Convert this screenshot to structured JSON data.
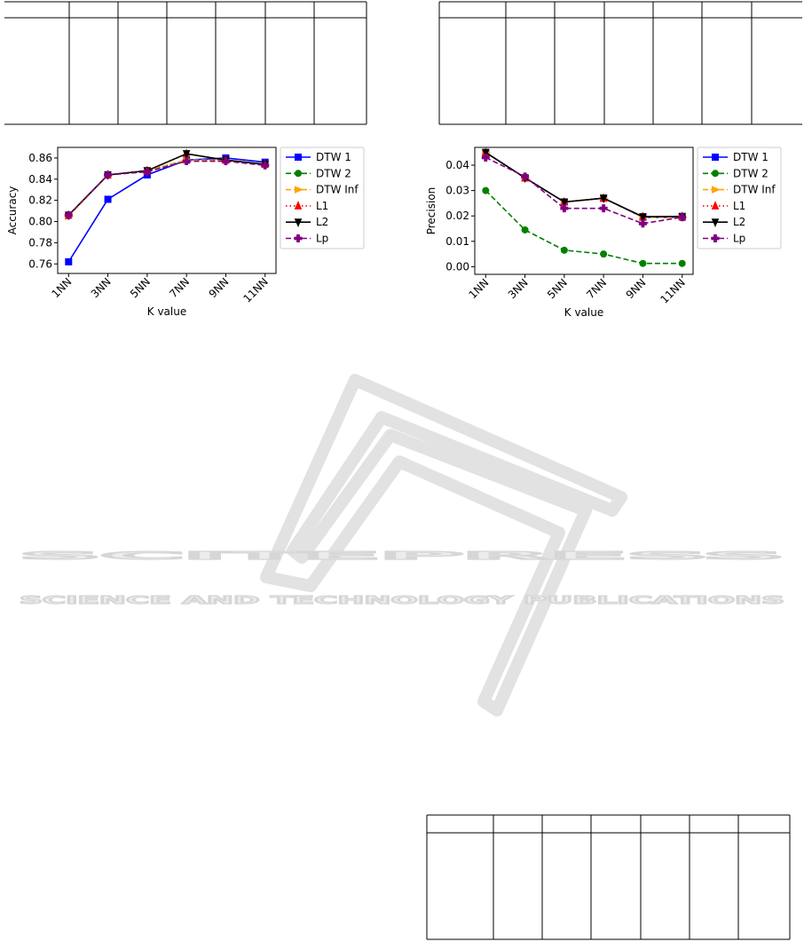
{
  "watermark": {
    "title": "SCITEPRESS",
    "subtitle": "SCIENCE AND TECHNOLOGY PUBLICATIONS"
  },
  "chart_data": [
    {
      "type": "line",
      "x_label": "K value",
      "y_label": "Accuracy",
      "categories": [
        "1NN",
        "3NN",
        "5NN",
        "7NN",
        "9NN",
        "11NN"
      ],
      "ylim": [
        0.751,
        0.87
      ],
      "yticks": [
        0.76,
        0.78,
        {
          "value": 0.8,
          "label": "0.80"
        },
        0.82,
        0.84,
        0.86
      ],
      "legend": "outside right",
      "series": [
        {
          "name": "DTW 1",
          "color": "#0000ff",
          "style": "solid",
          "marker": "square",
          "values": [
            0.762,
            0.821,
            0.844,
            0.858,
            0.86,
            0.856
          ]
        },
        {
          "name": "DTW 2",
          "color": "#008000",
          "style": "dashed",
          "marker": "circle",
          "values": [
            0.806,
            0.844,
            0.848,
            0.858,
            0.858,
            0.854
          ]
        },
        {
          "name": "DTW Inf",
          "color": "#ffa500",
          "style": "dashed",
          "marker": "triangle-right",
          "values": [
            0.805,
            0.844,
            0.848,
            0.858,
            0.858,
            0.854
          ]
        },
        {
          "name": "L1",
          "color": "#ff0000",
          "style": "dotted",
          "marker": "triangle-up",
          "values": [
            0.806,
            0.844,
            0.848,
            0.864,
            0.858,
            0.854
          ]
        },
        {
          "name": "L2",
          "color": "#000000",
          "style": "solid",
          "marker": "triangle-down",
          "values": [
            0.806,
            0.844,
            0.848,
            0.864,
            0.858,
            0.854
          ]
        },
        {
          "name": "Lp",
          "color": "#800080",
          "style": "dashed",
          "marker": "plus",
          "values": [
            0.806,
            0.844,
            0.847,
            0.857,
            0.857,
            0.853
          ]
        }
      ]
    },
    {
      "type": "line",
      "x_label": "K value",
      "y_label": "Precision",
      "categories": [
        "1NN",
        "3NN",
        "5NN",
        "7NN",
        "9NN",
        "11NN"
      ],
      "ylim": [
        -0.003,
        0.047
      ],
      "yticks": [
        {
          "value": 0,
          "label": "0.00"
        },
        0.01,
        0.02,
        0.03,
        0.04
      ],
      "legend": "outside right",
      "series": [
        {
          "name": "DTW 1",
          "color": "#0000ff",
          "style": "solid",
          "marker": "square",
          "values": [
            0.045,
            0.035,
            0.0255,
            0.027,
            0.0195,
            0.0195
          ]
        },
        {
          "name": "DTW 2",
          "color": "#008000",
          "style": "dashed",
          "marker": "circle",
          "values": [
            0.03,
            0.0145,
            0.0065,
            0.005,
            0.0013,
            0.0013
          ]
        },
        {
          "name": "DTW Inf",
          "color": "#ffa500",
          "style": "dashed",
          "marker": "triangle-right",
          "values": [
            0.045,
            0.035,
            0.0255,
            0.027,
            0.0195,
            0.0195
          ]
        },
        {
          "name": "L1",
          "color": "#ff0000",
          "style": "dotted",
          "marker": "triangle-up",
          "values": [
            0.045,
            0.035,
            0.0255,
            0.027,
            0.0197,
            0.0198
          ]
        },
        {
          "name": "L2",
          "color": "#000000",
          "style": "solid",
          "marker": "triangle-down",
          "values": [
            0.045,
            0.035,
            0.0255,
            0.027,
            0.0197,
            0.0198
          ]
        },
        {
          "name": "Lp",
          "color": "#800080",
          "style": "dashed",
          "marker": "plus",
          "values": [
            0.043,
            0.0355,
            0.023,
            0.023,
            0.017,
            0.0195
          ]
        }
      ]
    }
  ]
}
